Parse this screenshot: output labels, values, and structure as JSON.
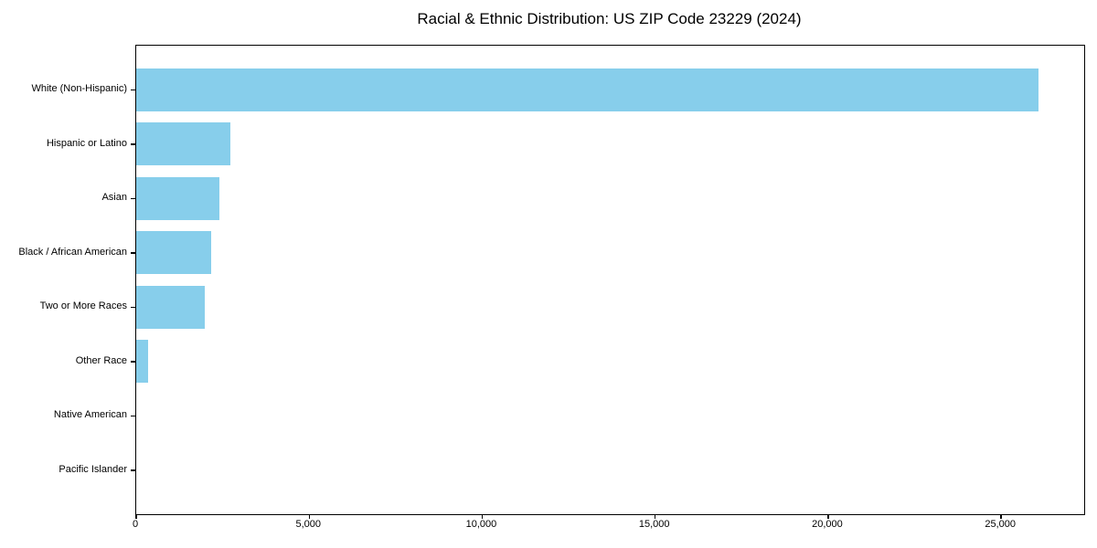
{
  "chart_data": {
    "type": "bar",
    "orientation": "horizontal",
    "title": "Racial & Ethnic Distribution: US ZIP Code 23229 (2024)",
    "categories": [
      "White (Non-Hispanic)",
      "Hispanic or Latino",
      "Asian",
      "Black / African American",
      "Two or More Races",
      "Other Race",
      "Native American",
      "Pacific Islander"
    ],
    "values": [
      26080,
      2710,
      2400,
      2160,
      1980,
      350,
      0,
      0
    ],
    "xlabel": "",
    "ylabel": "",
    "xlim": [
      0,
      27400
    ],
    "xticks": [
      0,
      5000,
      10000,
      15000,
      20000,
      25000
    ],
    "xtick_labels": [
      "0",
      "5,000",
      "10,000",
      "15,000",
      "20,000",
      "25,000"
    ],
    "bar_color": "#87CEEB",
    "grid": false,
    "legend_position": "none",
    "largest_bar_on_top": true
  }
}
